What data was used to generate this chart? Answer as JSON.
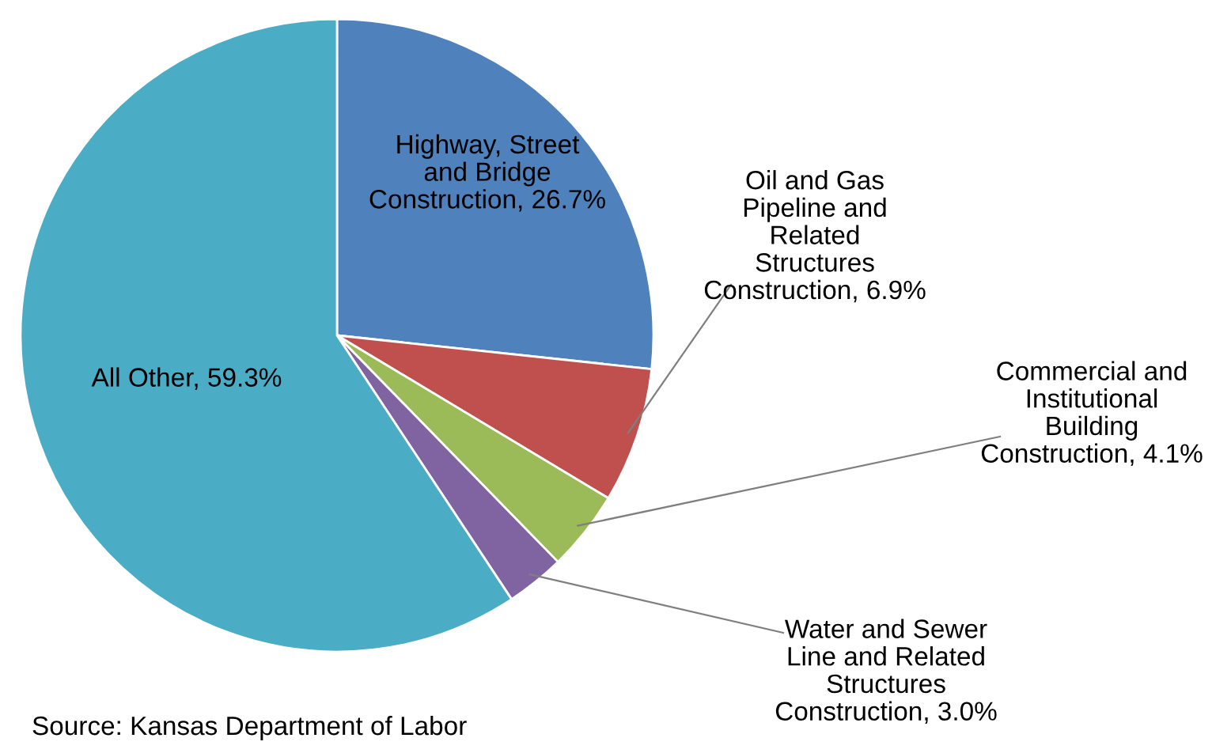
{
  "chart_data": {
    "type": "pie",
    "categories": [
      "Highway, Street\nand Bridge\nConstruction",
      "Oil and Gas\nPipeline and\nRelated\nStructures\nConstruction",
      "Commercial and\nInstitutional\nBuilding\nConstruction",
      "Water and Sewer\nLine and Related\nStructures\nConstruction",
      "All Other"
    ],
    "values": [
      26.7,
      6.9,
      4.1,
      3.0,
      59.3
    ],
    "value_labels": [
      "26.7%",
      "6.9%",
      "4.1%",
      "3.0%",
      "59.3%"
    ],
    "colors": [
      "#4f81bd",
      "#c0504d",
      "#9bbb59",
      "#8064a2",
      "#4bacc6"
    ],
    "annotations": [
      "Source: Kansas Department of Labor"
    ]
  }
}
